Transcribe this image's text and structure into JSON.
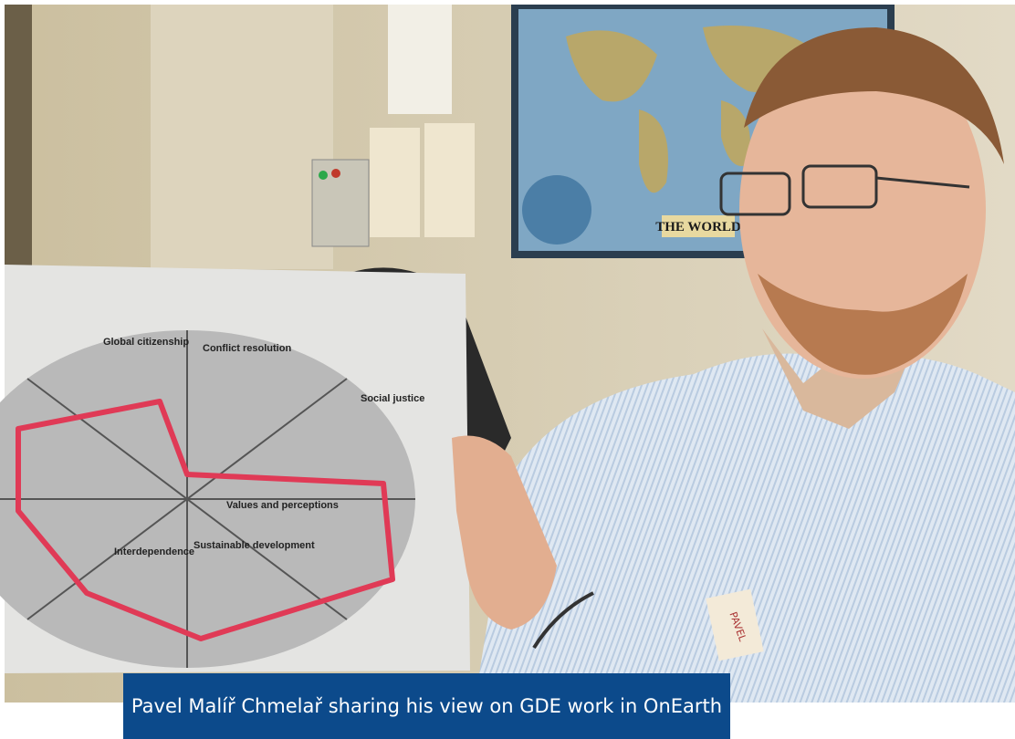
{
  "photo": {
    "map_title": "THE WORLD",
    "name_tag": "PAVEL",
    "sheet_headings": [
      "Global citizenship",
      "Conflict resolution",
      "Social justice",
      "Values and perceptions",
      "Sustainable development",
      "Interdependence"
    ]
  },
  "caption": "Pavel Malíř Chmelař sharing his view on GDE work in OnEarth"
}
